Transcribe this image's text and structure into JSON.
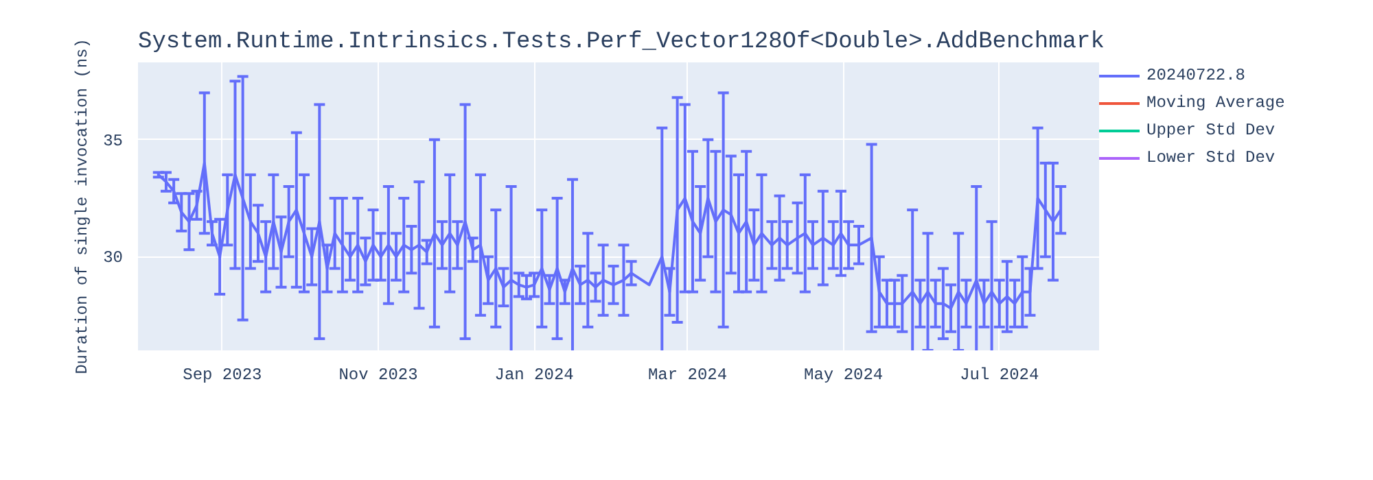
{
  "chart_data": {
    "type": "line",
    "title": "System.Runtime.Intrinsics.Tests.Perf_Vector128Of<Double>.AddBenchmark",
    "ylabel": "Duration of single invocation (ns)",
    "x": [
      "2023-08-07",
      "2023-08-10",
      "2023-08-13",
      "2023-08-16",
      "2023-08-19",
      "2023-08-22",
      "2023-08-25",
      "2023-08-28",
      "2023-08-31",
      "2023-09-03",
      "2023-09-06",
      "2023-09-09",
      "2023-09-12",
      "2023-09-15",
      "2023-09-18",
      "2023-09-21",
      "2023-09-24",
      "2023-09-27",
      "2023-09-30",
      "2023-10-03",
      "2023-10-06",
      "2023-10-09",
      "2023-10-12",
      "2023-10-15",
      "2023-10-18",
      "2023-10-21",
      "2023-10-24",
      "2023-10-27",
      "2023-10-30",
      "2023-11-02",
      "2023-11-05",
      "2023-11-08",
      "2023-11-11",
      "2023-11-14",
      "2023-11-17",
      "2023-11-20",
      "2023-11-23",
      "2023-11-26",
      "2023-11-29",
      "2023-12-02",
      "2023-12-05",
      "2023-12-08",
      "2023-12-11",
      "2023-12-14",
      "2023-12-17",
      "2023-12-20",
      "2023-12-23",
      "2023-12-26",
      "2023-12-29",
      "2024-01-01",
      "2024-01-04",
      "2024-01-07",
      "2024-01-10",
      "2024-01-13",
      "2024-01-16",
      "2024-01-19",
      "2024-01-22",
      "2024-01-25",
      "2024-01-28",
      "2024-02-01",
      "2024-02-05",
      "2024-02-08",
      "2024-02-15",
      "2024-02-20",
      "2024-02-23",
      "2024-02-26",
      "2024-02-29",
      "2024-03-03",
      "2024-03-06",
      "2024-03-09",
      "2024-03-12",
      "2024-03-15",
      "2024-03-18",
      "2024-03-21",
      "2024-03-24",
      "2024-03-27",
      "2024-03-30",
      "2024-04-03",
      "2024-04-06",
      "2024-04-09",
      "2024-04-13",
      "2024-04-16",
      "2024-04-19",
      "2024-04-23",
      "2024-04-27",
      "2024-04-30",
      "2024-05-03",
      "2024-05-07",
      "2024-05-12",
      "2024-05-15",
      "2024-05-18",
      "2024-05-21",
      "2024-05-24",
      "2024-05-28",
      "2024-05-31",
      "2024-06-03",
      "2024-06-06",
      "2024-06-09",
      "2024-06-12",
      "2024-06-15",
      "2024-06-18",
      "2024-06-22",
      "2024-06-25",
      "2024-06-28",
      "2024-07-01",
      "2024-07-04",
      "2024-07-07",
      "2024-07-10",
      "2024-07-13",
      "2024-07-16",
      "2024-07-19",
      "2024-07-22",
      "2024-07-25"
    ],
    "series": [
      {
        "name": "20240722.8",
        "color": "#636efa",
        "values": [
          33.5,
          33.2,
          32.8,
          31.9,
          31.5,
          32.2,
          34.0,
          31.0,
          30.0,
          32.0,
          33.5,
          32.5,
          31.5,
          31.0,
          30.0,
          31.5,
          30.2,
          31.5,
          32.0,
          31.0,
          30.0,
          31.5,
          29.5,
          31.0,
          30.5,
          30.0,
          30.5,
          29.8,
          30.5,
          30.0,
          30.5,
          30.0,
          30.5,
          30.3,
          30.5,
          30.2,
          31.0,
          30.5,
          31.0,
          30.5,
          31.5,
          30.3,
          30.5,
          29.0,
          29.5,
          28.7,
          29.0,
          28.8,
          28.7,
          28.8,
          29.5,
          28.6,
          29.5,
          28.5,
          29.5,
          28.8,
          29.0,
          28.7,
          29.0,
          28.8,
          29.0,
          29.3,
          28.8,
          30.0,
          28.5,
          32.0,
          32.5,
          31.5,
          31.0,
          32.5,
          31.5,
          32.0,
          31.8,
          31.0,
          31.5,
          30.5,
          31.0,
          30.5,
          30.8,
          30.5,
          30.8,
          31.0,
          30.5,
          30.8,
          30.5,
          31.0,
          30.5,
          30.5,
          30.8,
          28.5,
          28.0,
          28.0,
          28.0,
          28.5,
          28.0,
          28.5,
          28.0,
          28.0,
          27.8,
          28.5,
          28.0,
          29.0,
          28.0,
          28.5,
          28.0,
          28.3,
          28.0,
          28.5,
          28.5,
          32.5,
          32.0,
          31.5,
          32.0
        ],
        "errors": [
          0.1,
          0.4,
          0.5,
          0.8,
          1.2,
          0.6,
          3.0,
          0.5,
          1.6,
          1.5,
          4.0,
          5.2,
          2.0,
          1.2,
          1.5,
          2.0,
          1.5,
          1.5,
          3.3,
          2.5,
          1.2,
          5.0,
          1.0,
          1.5,
          2.0,
          1.0,
          2.0,
          1.0,
          1.5,
          1.0,
          2.5,
          1.0,
          2.0,
          1.0,
          2.7,
          0.5,
          4.0,
          1.0,
          2.5,
          1.0,
          5.0,
          0.5,
          3.0,
          1.0,
          2.5,
          0.8,
          4.0,
          0.5,
          0.5,
          0.5,
          2.5,
          0.6,
          3.0,
          0.5,
          3.8,
          0.8,
          2.0,
          0.6,
          1.5,
          0.8,
          1.5,
          0.5,
          null,
          5.5,
          1.0,
          4.8,
          4.0,
          3.0,
          2.0,
          2.5,
          3.0,
          5.0,
          2.5,
          2.5,
          3.0,
          1.5,
          2.5,
          1.0,
          1.8,
          1.0,
          1.5,
          2.5,
          1.0,
          2.0,
          1.0,
          1.8,
          1.0,
          0.8,
          4.0,
          1.5,
          1.0,
          1.0,
          1.2,
          3.5,
          1.0,
          2.5,
          1.0,
          1.5,
          1.0,
          2.5,
          1.0,
          4.0,
          1.0,
          3.0,
          1.0,
          1.5,
          1.0,
          1.5,
          1.0,
          3.0,
          2.0,
          2.5,
          1.0
        ]
      },
      {
        "name": "Moving Average",
        "color": "#ef553b",
        "values": [
          null,
          null,
          null,
          null,
          null,
          null,
          null,
          null,
          null,
          null,
          null,
          null,
          null,
          null,
          null,
          null,
          null,
          null,
          null,
          null,
          null,
          null,
          null,
          null,
          null,
          null,
          null,
          null,
          null,
          null,
          null,
          null,
          null,
          null,
          null,
          null,
          null,
          null,
          null,
          null,
          null,
          null,
          null,
          null,
          null,
          null,
          null,
          null,
          null,
          null,
          null,
          null,
          null,
          null,
          null,
          null,
          null,
          null,
          null,
          null,
          null,
          null,
          null,
          null,
          null,
          null,
          null,
          null,
          null,
          null,
          null,
          null,
          null,
          null,
          null,
          null,
          null,
          null,
          null,
          null,
          null,
          null,
          null,
          null,
          null,
          null,
          null,
          null,
          null,
          null,
          null,
          null,
          null,
          null,
          null,
          null,
          null,
          null,
          null,
          null,
          null,
          null,
          null,
          null,
          null,
          null,
          null,
          null,
          null,
          null,
          null,
          null,
          null
        ]
      },
      {
        "name": "Upper Std Dev",
        "color": "#00cc96",
        "values": [
          null,
          null,
          null,
          null,
          null,
          null,
          null,
          null,
          null,
          null,
          null,
          null,
          null,
          null,
          null,
          null,
          null,
          null,
          null,
          null,
          null,
          null,
          null,
          null,
          null,
          null,
          null,
          null,
          null,
          null,
          null,
          null,
          null,
          null,
          null,
          null,
          null,
          null,
          null,
          null,
          null,
          null,
          null,
          null,
          null,
          null,
          null,
          null,
          null,
          null,
          null,
          null,
          null,
          null,
          null,
          null,
          null,
          null,
          null,
          null,
          null,
          null,
          null,
          null,
          null,
          null,
          null,
          null,
          null,
          null,
          null,
          null,
          null,
          null,
          null,
          null,
          null,
          null,
          null,
          null,
          null,
          null,
          null,
          null,
          null,
          null,
          null,
          null,
          null,
          null,
          null,
          null,
          null,
          null,
          null,
          null,
          null,
          null,
          null,
          null,
          null,
          null,
          null,
          null,
          null,
          null,
          null,
          null,
          null,
          null,
          null,
          null,
          null
        ]
      },
      {
        "name": "Lower Std Dev",
        "color": "#ab63fa",
        "values": [
          null,
          null,
          null,
          null,
          null,
          null,
          null,
          null,
          null,
          null,
          null,
          null,
          null,
          null,
          null,
          null,
          null,
          null,
          null,
          null,
          null,
          null,
          null,
          null,
          null,
          null,
          null,
          null,
          null,
          null,
          null,
          null,
          null,
          null,
          null,
          null,
          null,
          null,
          null,
          null,
          null,
          null,
          null,
          null,
          null,
          null,
          null,
          null,
          null,
          null,
          null,
          null,
          null,
          null,
          null,
          null,
          null,
          null,
          null,
          null,
          null,
          null,
          null,
          null,
          null,
          null,
          null,
          null,
          null,
          null,
          null,
          null,
          null,
          null,
          null,
          null,
          null,
          null,
          null,
          null,
          null,
          null,
          null,
          null,
          null,
          null,
          null,
          null,
          null,
          null,
          null,
          null,
          null,
          null,
          null,
          null,
          null,
          null,
          null,
          null,
          null,
          null,
          null,
          null,
          null,
          null,
          null,
          null,
          null,
          null,
          null,
          null,
          null
        ]
      }
    ],
    "xlim": [
      "2023-07-30",
      "2024-08-09"
    ],
    "xticks": [
      {
        "value": "2023-09-01",
        "label": "Sep 2023"
      },
      {
        "value": "2023-11-01",
        "label": "Nov 2023"
      },
      {
        "value": "2024-01-01",
        "label": "Jan 2024"
      },
      {
        "value": "2024-03-01",
        "label": "Mar 2024"
      },
      {
        "value": "2024-05-01",
        "label": "May 2024"
      },
      {
        "value": "2024-07-01",
        "label": "Jul 2024"
      }
    ],
    "ylim": [
      26,
      38.3
    ],
    "yticks": [
      30,
      35
    ],
    "grid": true,
    "legend": "right",
    "line_style": "solid",
    "marker": "none"
  }
}
